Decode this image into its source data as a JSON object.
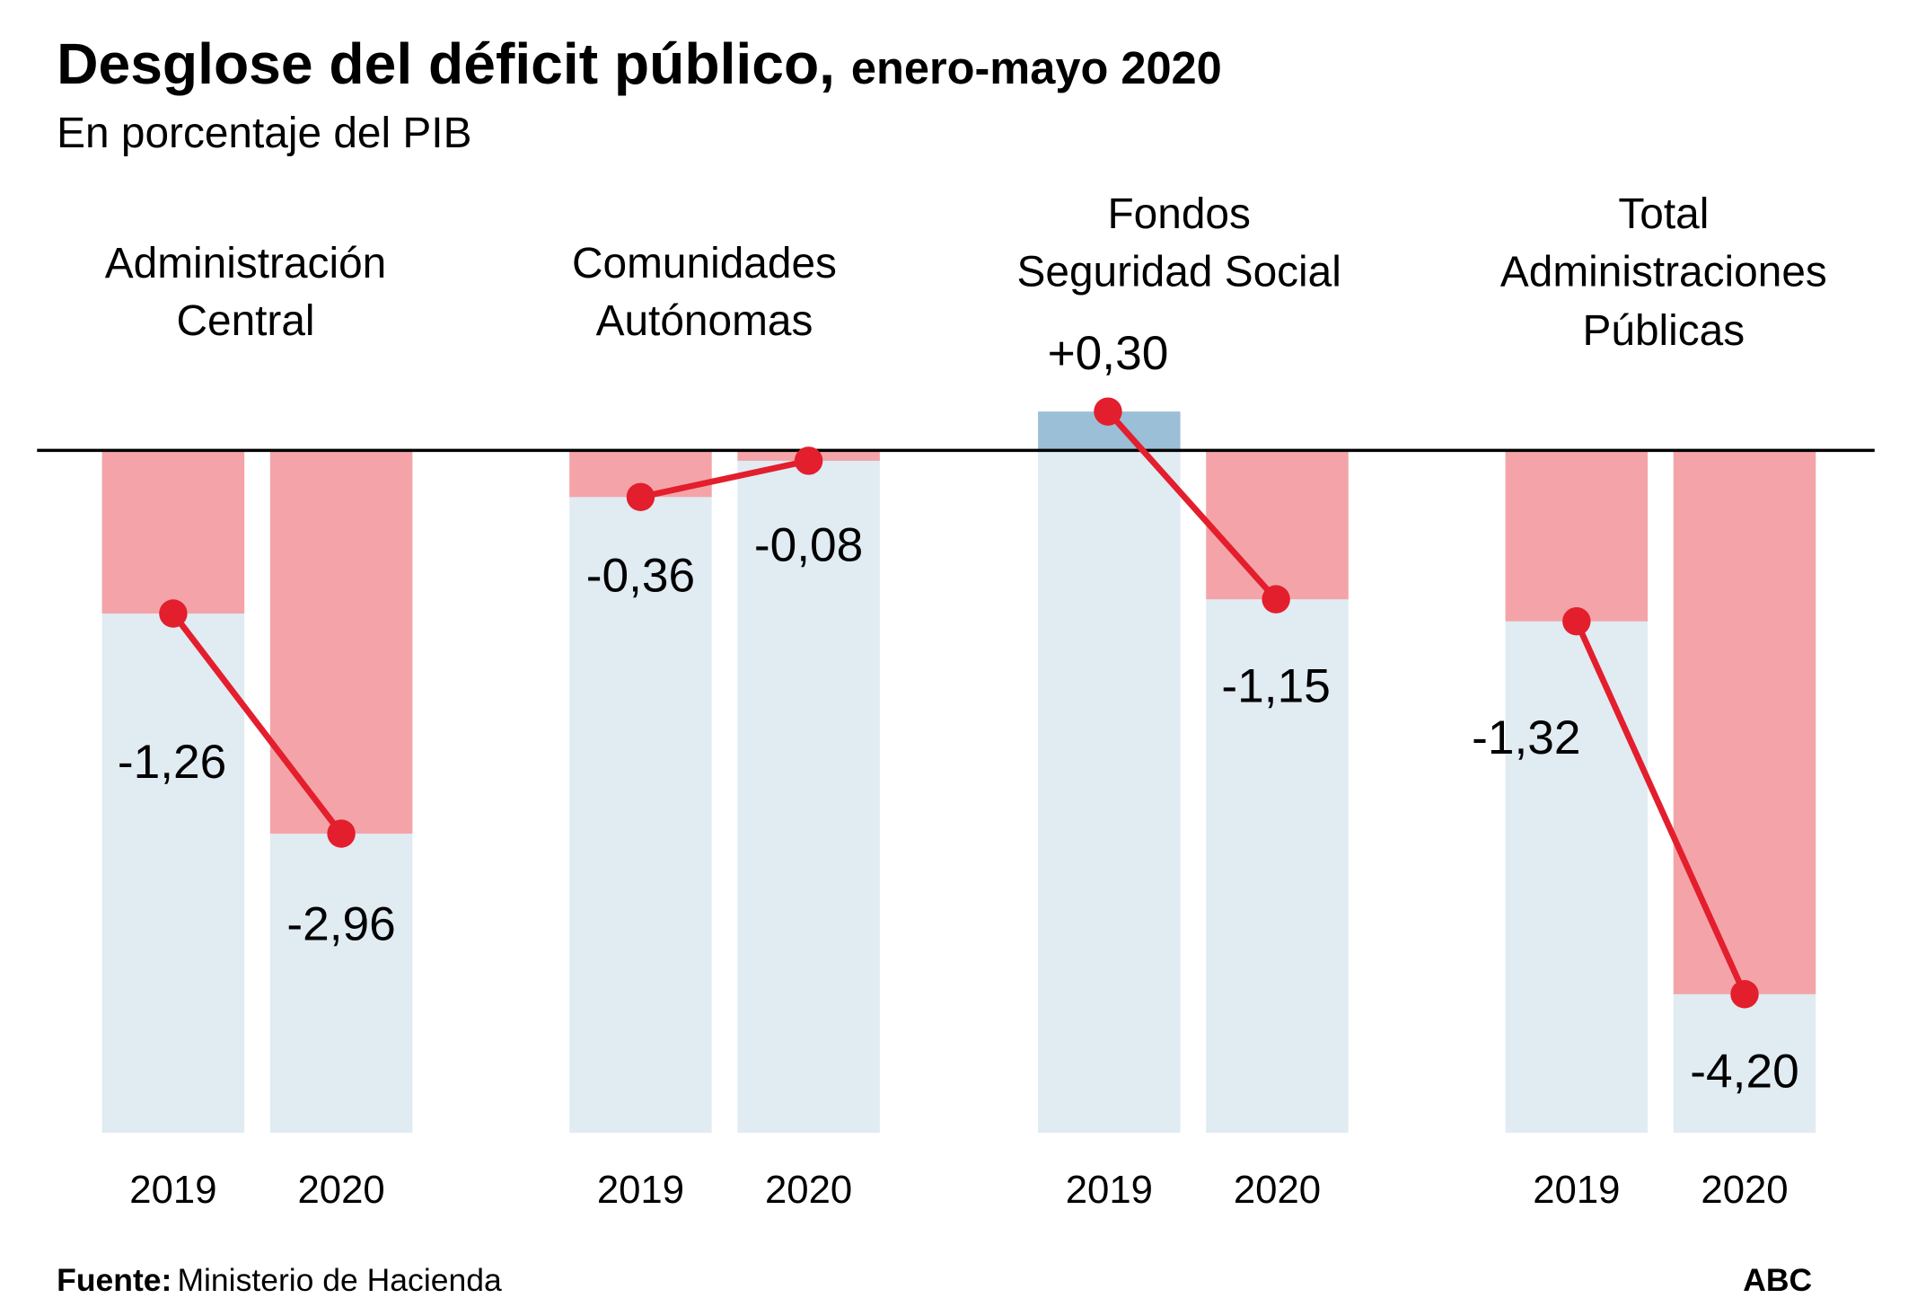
{
  "header": {
    "title": "Desglose del déficit público,",
    "title_suffix": "enero-mayo 2020",
    "subtitle": "En porcentaje del PIB"
  },
  "footer": {
    "source_label": "Fuente:",
    "source": "Ministerio de Hacienda",
    "brand": "ABC"
  },
  "colors": {
    "negative_fill": "#f4a4a8",
    "positive_fill": "#9bbfd6",
    "background_bar": "#e0ebf2",
    "line": "#e31e2d",
    "axis": "#000000"
  },
  "chart_data": {
    "type": "bar",
    "ylabel": "",
    "grid": false,
    "groups": [
      {
        "label_lines": [
          "Administración",
          "Central"
        ],
        "categories": [
          "2019",
          "2020"
        ],
        "values": [
          -1.26,
          -2.96
        ],
        "labels": [
          "-1,26",
          "-2,96"
        ]
      },
      {
        "label_lines": [
          "Comunidades",
          "Autónomas"
        ],
        "categories": [
          "2019",
          "2020"
        ],
        "values": [
          -0.36,
          -0.08
        ],
        "labels": [
          "-0,36",
          "-0,08"
        ]
      },
      {
        "label_lines": [
          "Fondos",
          "Seguridad Social"
        ],
        "categories": [
          "2019",
          "2020"
        ],
        "values": [
          0.3,
          -1.15
        ],
        "labels": [
          "+0,30",
          "-1,15"
        ]
      },
      {
        "label_lines": [
          "Total",
          "Administraciones",
          "Públicas"
        ],
        "categories": [
          "2019",
          "2020"
        ],
        "values": [
          -1.32,
          -4.2
        ],
        "labels": [
          "-1,32",
          "-4,20"
        ]
      }
    ]
  }
}
